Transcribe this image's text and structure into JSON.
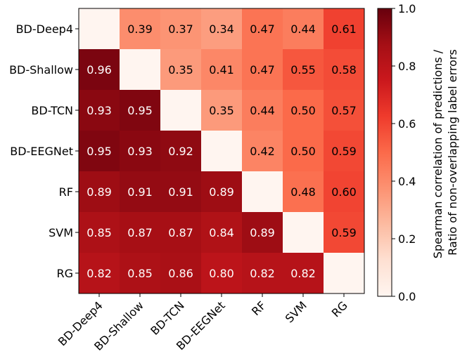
{
  "chart_data": {
    "type": "heatmap",
    "row_labels": [
      "BD-Deep4",
      "BD-Shallow",
      "BD-TCN",
      "BD-EEGNet",
      "RF",
      "SVM",
      "RG"
    ],
    "col_labels": [
      "BD-Deep4",
      "BD-Shallow",
      "BD-TCN",
      "BD-EEGNet",
      "RF",
      "SVM",
      "RG"
    ],
    "values": [
      [
        null,
        0.39,
        0.37,
        0.34,
        0.47,
        0.44,
        0.61
      ],
      [
        0.96,
        null,
        0.35,
        0.41,
        0.47,
        0.55,
        0.58
      ],
      [
        0.93,
        0.95,
        null,
        0.35,
        0.44,
        0.5,
        0.57
      ],
      [
        0.95,
        0.93,
        0.92,
        null,
        0.42,
        0.5,
        0.59
      ],
      [
        0.89,
        0.91,
        0.91,
        0.89,
        null,
        0.48,
        0.6
      ],
      [
        0.85,
        0.87,
        0.87,
        0.84,
        0.89,
        null,
        0.59
      ],
      [
        0.82,
        0.85,
        0.86,
        0.8,
        0.82,
        0.82,
        null
      ]
    ],
    "colorbar": {
      "label_line1": "Spearman correlation of predictions /",
      "label_line2": "Ratio of non-overlapping label errors",
      "range": [
        0.0,
        1.0
      ],
      "ticks": [
        0.0,
        0.2,
        0.4,
        0.6,
        0.8,
        1.0
      ],
      "tick_labels": [
        "0.0",
        "0.2",
        "0.4",
        "0.6",
        "0.8",
        "1.0"
      ],
      "colormap": "Reds"
    },
    "xtick_rotation": 45,
    "diagonal": "blank"
  }
}
